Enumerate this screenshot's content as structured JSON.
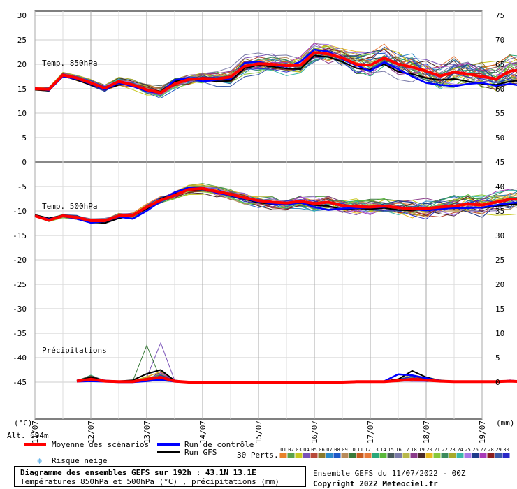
{
  "chart_data": {
    "type": "line",
    "title": "Diagramme des ensembles GEFS sur 192h : 43.1N 13.1E",
    "subtitle": "Températures 850hPa et 500hPa (°C) , précipitations (mm)",
    "x_labels": [
      "11/07",
      "12/07",
      "13/07",
      "14/07",
      "15/07",
      "16/07",
      "17/07",
      "18/07",
      "19/07"
    ],
    "x_range_hours": [
      0,
      192
    ],
    "step_hours": 6,
    "left_axis": {
      "label": "(°C)",
      "ticks": [
        30,
        25,
        20,
        15,
        10,
        5,
        0,
        -5,
        -10,
        -15,
        -20,
        -25,
        -30,
        -35,
        -40,
        -45
      ]
    },
    "right_axis": {
      "label": "(mm)",
      "ticks": [
        75,
        70,
        65,
        60,
        55,
        50,
        45,
        40,
        35,
        30,
        25,
        20,
        15,
        10,
        5,
        0
      ]
    },
    "panels": {
      "t850": {
        "label": "Temp. 850hPa",
        "ylim": [
          0,
          30
        ],
        "right_ylim": [
          45,
          75
        ]
      },
      "t500": {
        "label": "Temp. 500hPa",
        "ylim": [
          -45,
          0
        ],
        "right_ylim": [
          0,
          45
        ]
      },
      "precip": {
        "label": "Précipitations",
        "ylim_mm": [
          0,
          10
        ]
      }
    },
    "altitude": "Alt. 694m",
    "series": {
      "mean_t850": [
        15.0,
        14.9,
        17.8,
        17.2,
        16.2,
        15.1,
        16.5,
        15.8,
        14.8,
        14.2,
        16.0,
        16.9,
        17.1,
        17.0,
        17.4,
        19.6,
        20.1,
        20.0,
        19.7,
        19.8,
        22.4,
        22.1,
        21.3,
        20.0,
        19.8,
        21.3,
        20.0,
        19.4,
        18.6,
        17.6,
        18.4,
        18.0,
        17.5,
        17.0,
        18.6,
        18.9
      ],
      "control_t850": [
        15.1,
        14.7,
        17.5,
        17.0,
        16.0,
        14.8,
        16.2,
        15.5,
        14.5,
        14.1,
        16.8,
        17.2,
        16.5,
        16.8,
        17.0,
        20.3,
        20.5,
        19.8,
        19.5,
        20.5,
        23.0,
        22.6,
        21.0,
        19.8,
        18.6,
        20.4,
        19.0,
        17.5,
        16.2,
        15.8,
        15.5,
        16.0,
        16.2,
        15.6,
        16.0,
        15.5
      ],
      "gfs_t850": [
        14.8,
        14.6,
        17.6,
        16.8,
        15.8,
        14.9,
        15.8,
        15.9,
        14.7,
        14.5,
        16.5,
        17.0,
        16.9,
        16.5,
        16.6,
        19.2,
        19.8,
        19.5,
        19.1,
        19.0,
        21.8,
        21.5,
        20.5,
        19.2,
        18.9,
        20.0,
        18.5,
        18.0,
        17.2,
        16.8,
        17.0,
        16.5,
        16.0,
        15.8,
        16.5,
        16.8
      ],
      "mean_t500": [
        -11.0,
        -11.9,
        -11.0,
        -11.3,
        -12.0,
        -12.0,
        -11.0,
        -10.9,
        -9.2,
        -7.8,
        -6.8,
        -5.6,
        -5.4,
        -6.0,
        -6.6,
        -7.3,
        -7.9,
        -8.2,
        -8.4,
        -8.0,
        -8.5,
        -8.2,
        -8.9,
        -9.1,
        -9.2,
        -9.0,
        -9.3,
        -9.6,
        -9.5,
        -9.2,
        -9.0,
        -8.6,
        -8.8,
        -8.2,
        -7.6,
        -7.5
      ],
      "control_t500": [
        -11.0,
        -11.7,
        -11.1,
        -11.6,
        -12.4,
        -12.1,
        -11.2,
        -11.6,
        -10.0,
        -8.0,
        -6.2,
        -5.2,
        -5.2,
        -6.3,
        -6.8,
        -7.5,
        -8.1,
        -8.5,
        -8.7,
        -8.3,
        -9.2,
        -9.8,
        -9.5,
        -9.4,
        -9.3,
        -9.2,
        -9.1,
        -9.6,
        -9.9,
        -9.6,
        -9.4,
        -9.4,
        -9.3,
        -8.8,
        -8.4,
        -8.2
      ],
      "gfs_t500": [
        -10.8,
        -11.5,
        -10.9,
        -11.2,
        -12.2,
        -12.5,
        -11.5,
        -11.0,
        -9.6,
        -7.5,
        -6.5,
        -5.8,
        -5.6,
        -6.1,
        -6.9,
        -7.6,
        -8.3,
        -8.6,
        -8.5,
        -8.4,
        -8.8,
        -9.0,
        -9.7,
        -9.5,
        -9.6,
        -9.4,
        -9.8,
        -9.9,
        -9.6,
        -9.3,
        -9.5,
        -9.2,
        -9.4,
        -9.0,
        -8.7,
        -8.5
      ],
      "mean_precip": [
        0,
        0,
        0,
        0.2,
        0.6,
        0.2,
        0.1,
        0.1,
        0.6,
        1.0,
        0.2,
        0,
        0,
        0,
        0,
        0,
        0,
        0,
        0,
        0,
        0,
        0,
        0,
        0.1,
        0.1,
        0.1,
        0.3,
        0.6,
        0.4,
        0.2,
        0.1,
        0.1,
        0.1,
        0.1,
        0.2,
        0.1
      ],
      "control_precip": [
        0,
        0,
        0,
        0.1,
        0.2,
        0.1,
        0,
        0,
        0.2,
        0.5,
        0.1,
        0,
        0,
        0,
        0,
        0,
        0,
        0,
        0,
        0,
        0,
        0,
        0,
        0.1,
        0.1,
        0.2,
        1.6,
        1.4,
        0.8,
        0.3,
        0.1,
        0.1,
        0.1,
        0.1,
        0.2,
        0.1
      ],
      "gfs_precip": [
        0,
        0,
        0,
        0.3,
        1.0,
        0.3,
        0.2,
        0.4,
        1.7,
        2.5,
        0.3,
        0,
        0,
        0,
        0,
        0,
        0,
        0,
        0,
        0,
        0,
        0,
        0,
        0.1,
        0.1,
        0.2,
        0.6,
        2.3,
        1.0,
        0.3,
        0.2,
        0.1,
        0.2,
        0.1,
        0.1,
        0.1
      ],
      "perturbation_count": 30
    }
  },
  "legend": {
    "mean_label": "Moyenne des scénarios",
    "control_label": "Run de contrôle",
    "gfs_label": "Run GFS",
    "snow_label": "Risque neige",
    "perts_label": "30 Perts.",
    "pert_numbers": [
      "01",
      "02",
      "03",
      "04",
      "05",
      "06",
      "07",
      "08",
      "09",
      "10",
      "11",
      "12",
      "13",
      "14",
      "15",
      "16",
      "17",
      "18",
      "19",
      "20",
      "21",
      "22",
      "23",
      "24",
      "25",
      "26",
      "27",
      "28",
      "29",
      "30"
    ],
    "pert_colors": [
      "#e8822a",
      "#5aa24a",
      "#c8c81e",
      "#7a52b8",
      "#b84a3a",
      "#8a7a2a",
      "#2a8ac8",
      "#1e5ac8",
      "#b88a5a",
      "#3a7a3a",
      "#c85a1e",
      "#e87a3a",
      "#2aa87a",
      "#5ab83a",
      "#485a5a",
      "#7a7aa8",
      "#b8b84a",
      "#8a3a8a",
      "#4a2a2a",
      "#e8b81e",
      "#88c83a",
      "#3a8a5a",
      "#a8aa2a",
      "#3ab8a8",
      "#a878e8",
      "#1e3a8a",
      "#a83ab8",
      "#8a1e1e",
      "#3a5aa8",
      "#2a2ac8"
    ],
    "colors": {
      "mean": "#ff0000",
      "control": "#0000ff",
      "gfs": "#000000",
      "snow": "#5aaee8"
    }
  },
  "footer": {
    "title": "Diagramme des ensembles GEFS sur 192h : 43.1N 13.1E",
    "subtitle": "Températures 850hPa et 500hPa (°C) , précipitations (mm)",
    "run": "Ensemble GEFS du 11/07/2022 - 00Z",
    "copyright": "Copyright 2022 Meteociel.fr"
  }
}
